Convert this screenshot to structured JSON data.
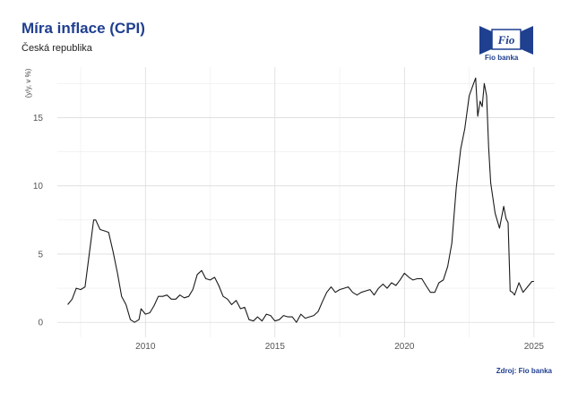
{
  "header": {
    "title": "Míra inflace (CPI)",
    "subtitle": "Česká republika"
  },
  "logo": {
    "label": "Fio banka",
    "mark_text": "Fio",
    "color": "#1f3f8f"
  },
  "source": "Zdroj: Fio banka",
  "chart_data": {
    "type": "line",
    "title": "Míra inflace (CPI)",
    "subtitle": "Česká republika",
    "xlabel": "",
    "ylabel": "(y/y, v %)",
    "xlim": [
      2006.6,
      2025.8
    ],
    "ylim": [
      -1.1,
      18.7
    ],
    "x_ticks": [
      2010,
      2015,
      2020,
      2025
    ],
    "y_ticks": [
      0,
      5,
      10,
      15
    ],
    "grid": true,
    "line_color": "#1a1a1a",
    "x": [
      2007.0,
      2007.17,
      2007.33,
      2007.5,
      2007.67,
      2007.83,
      2008.0,
      2008.08,
      2008.25,
      2008.42,
      2008.58,
      2008.75,
      2008.92,
      2009.08,
      2009.25,
      2009.42,
      2009.58,
      2009.75,
      2009.83,
      2010.0,
      2010.17,
      2010.33,
      2010.5,
      2010.67,
      2010.83,
      2011.0,
      2011.17,
      2011.33,
      2011.5,
      2011.67,
      2011.83,
      2012.0,
      2012.17,
      2012.33,
      2012.5,
      2012.67,
      2012.83,
      2013.0,
      2013.17,
      2013.33,
      2013.5,
      2013.67,
      2013.83,
      2014.0,
      2014.17,
      2014.33,
      2014.5,
      2014.67,
      2014.83,
      2015.0,
      2015.17,
      2015.33,
      2015.5,
      2015.67,
      2015.83,
      2016.0,
      2016.17,
      2016.33,
      2016.5,
      2016.67,
      2016.83,
      2017.0,
      2017.17,
      2017.33,
      2017.5,
      2017.67,
      2017.83,
      2018.0,
      2018.17,
      2018.33,
      2018.5,
      2018.67,
      2018.83,
      2019.0,
      2019.17,
      2019.33,
      2019.5,
      2019.67,
      2019.83,
      2020.0,
      2020.17,
      2020.33,
      2020.5,
      2020.67,
      2020.83,
      2021.0,
      2021.17,
      2021.33,
      2021.5,
      2021.67,
      2021.83,
      2022.0,
      2022.17,
      2022.33,
      2022.5,
      2022.67,
      2022.75,
      2022.83,
      2022.92,
      2023.0,
      2023.08,
      2023.17,
      2023.25,
      2023.33,
      2023.5,
      2023.67,
      2023.83,
      2023.92,
      2024.0,
      2024.08,
      2024.17,
      2024.25,
      2024.42,
      2024.58,
      2024.75,
      2024.92,
      2025.0
    ],
    "values": [
      1.3,
      1.7,
      2.5,
      2.4,
      2.6,
      5.0,
      7.5,
      7.5,
      6.8,
      6.7,
      6.6,
      5.2,
      3.6,
      1.9,
      1.3,
      0.2,
      0.0,
      0.2,
      1.0,
      0.6,
      0.7,
      1.2,
      1.9,
      1.9,
      2.0,
      1.7,
      1.7,
      2.0,
      1.8,
      1.9,
      2.4,
      3.5,
      3.8,
      3.2,
      3.1,
      3.3,
      2.7,
      1.9,
      1.7,
      1.3,
      1.6,
      1.0,
      1.1,
      0.2,
      0.1,
      0.4,
      0.1,
      0.6,
      0.5,
      0.1,
      0.2,
      0.5,
      0.4,
      0.4,
      0.0,
      0.6,
      0.3,
      0.4,
      0.5,
      0.8,
      1.5,
      2.2,
      2.6,
      2.2,
      2.4,
      2.5,
      2.6,
      2.2,
      2.0,
      2.2,
      2.3,
      2.4,
      2.0,
      2.5,
      2.8,
      2.5,
      2.9,
      2.7,
      3.1,
      3.6,
      3.3,
      3.1,
      3.2,
      3.2,
      2.7,
      2.2,
      2.2,
      2.9,
      3.1,
      4.1,
      5.8,
      9.9,
      12.7,
      14.2,
      16.6,
      17.5,
      17.9,
      15.1,
      16.2,
      15.8,
      17.5,
      16.6,
      12.8,
      10.2,
      8.0,
      6.9,
      8.5,
      7.6,
      7.3,
      2.3,
      2.2,
      2.0,
      2.9,
      2.2,
      2.6,
      3.0,
      3.0
    ]
  }
}
